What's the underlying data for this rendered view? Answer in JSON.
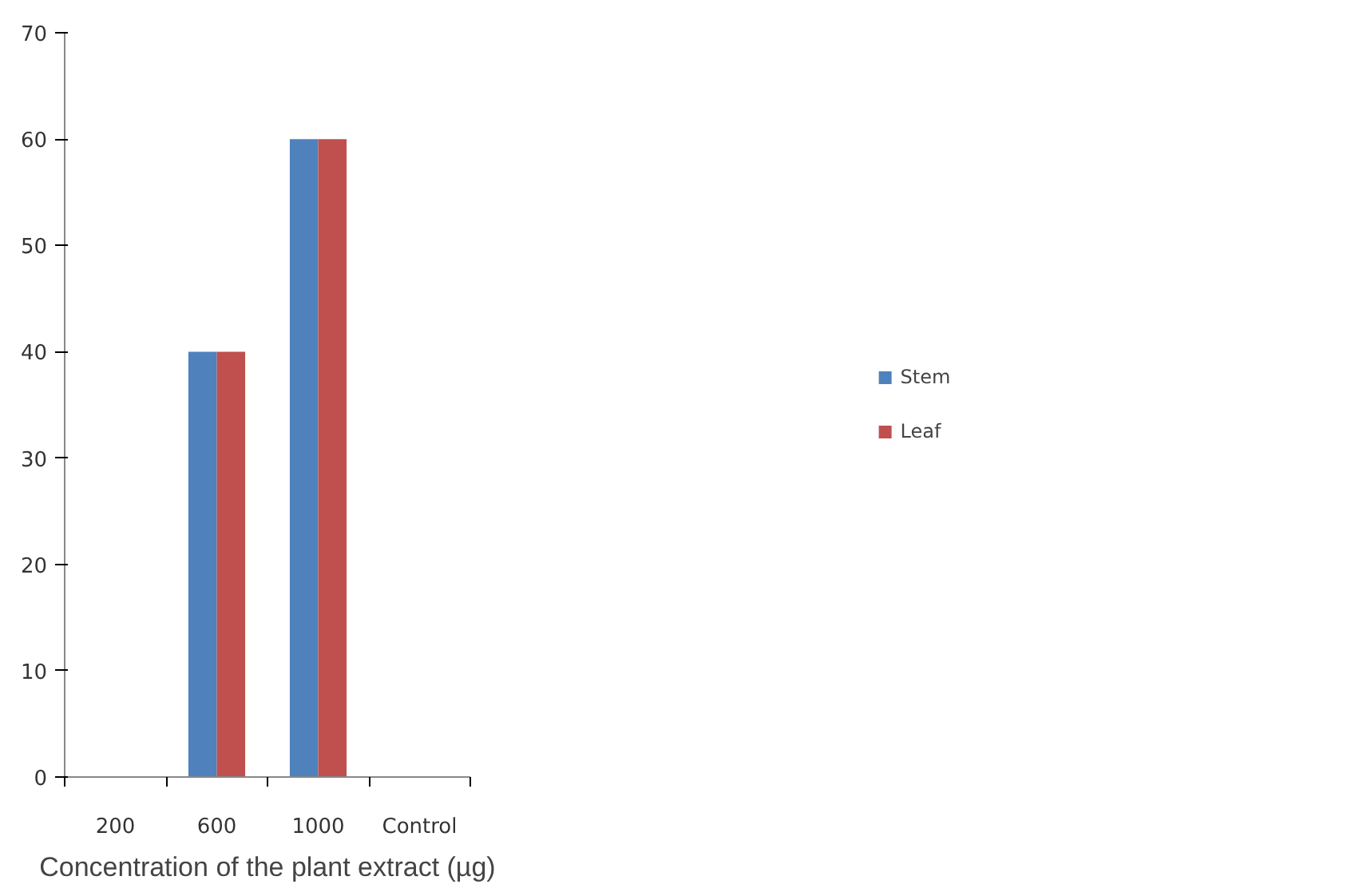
{
  "chart_data": {
    "type": "bar",
    "xlabel": "Concentration of the plant extract (µg)",
    "categories": [
      "200",
      "600",
      "1000",
      "Control"
    ],
    "series": [
      {
        "name": "Stem",
        "color": "#4f81bd",
        "values": [
          0,
          40,
          60,
          0
        ]
      },
      {
        "name": "Leaf",
        "color": "#c0504d",
        "values": [
          0,
          40,
          60,
          0
        ]
      }
    ],
    "ylim": [
      0,
      70
    ],
    "yticks": [
      0,
      10,
      20,
      30,
      40,
      50,
      60,
      70
    ],
    "grid": false,
    "legend": "right"
  }
}
